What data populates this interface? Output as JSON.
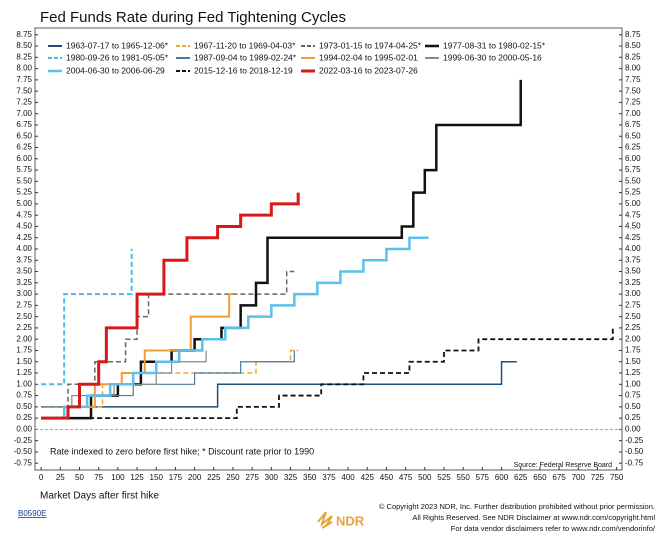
{
  "chart_data": {
    "type": "line",
    "step": true,
    "title": "Fed Funds Rate during Fed Tightening Cycles",
    "x_label": "Market Days after first hike",
    "annotation": "Rate indexed to zero before first hike; * Discount rate prior to 1990",
    "source": "Source: Federal Reserve Board",
    "code": "B0590E",
    "footer": [
      "© Copyright 2023 NDR, Inc. Further distribution prohibited without prior permission.",
      "All Rights Reserved. See NDR Disclaimer at www.ndr.com/copyright.html",
      "For data vendor disclaimers refer to www.ndr.com/vendorinfo/"
    ],
    "logo": "NDR",
    "xlim": [
      -8,
      757
    ],
    "ylim": [
      -0.9,
      8.9
    ],
    "xticks": [
      0,
      25,
      50,
      75,
      100,
      125,
      150,
      175,
      200,
      225,
      250,
      275,
      300,
      325,
      350,
      375,
      400,
      425,
      450,
      475,
      500,
      525,
      550,
      575,
      600,
      625,
      650,
      675,
      700,
      725,
      750
    ],
    "yticks": [
      -0.75,
      {
        "value": -0.5,
        "label": "-0.50"
      },
      -0.25,
      {
        "value": 0,
        "label": "0.00"
      },
      0.25,
      {
        "value": 0.5,
        "label": "0.50"
      },
      0.75,
      {
        "value": 1,
        "label": "1.00"
      },
      1.25,
      {
        "value": 1.5,
        "label": "1.50"
      },
      1.75,
      {
        "value": 2,
        "label": "2.00"
      },
      2.25,
      {
        "value": 2.5,
        "label": "2.50"
      },
      2.75,
      {
        "value": 3,
        "label": "3.00"
      },
      3.25,
      {
        "value": 3.5,
        "label": "3.50"
      },
      3.75,
      {
        "value": 4,
        "label": "4.00"
      },
      4.25,
      {
        "value": 4.5,
        "label": "4.50"
      },
      4.75,
      {
        "value": 5,
        "label": "5.00"
      },
      5.25,
      {
        "value": 5.5,
        "label": "5.50"
      },
      5.75,
      {
        "value": 6,
        "label": "6.00"
      },
      6.25,
      {
        "value": 6.5,
        "label": "6.50"
      },
      6.75,
      {
        "value": 7,
        "label": "7.00"
      },
      7.25,
      {
        "value": 7.5,
        "label": "7.50"
      },
      7.75,
      {
        "value": 8,
        "label": "8.00"
      },
      8.25,
      {
        "value": 8.5,
        "label": "8.50"
      },
      8.75
    ],
    "hline": 0,
    "series": [
      {
        "name": "1963-07-17 to 1965-12-06*",
        "color": "#1f4e79",
        "width": 1.5,
        "dash": false,
        "x": [
          0,
          230,
          600,
          620
        ],
        "values": [
          0.5,
          1.0,
          1.5,
          1.5
        ]
      },
      {
        "name": "1967-11-20 to 1969-04-03*",
        "color": "#f4a23a",
        "width": 1.5,
        "dash": true,
        "x": [
          0,
          80,
          130,
          245,
          280,
          325,
          335
        ],
        "values": [
          0.5,
          1.0,
          1.25,
          1.25,
          1.5,
          1.75,
          1.75
        ]
      },
      {
        "name": "1973-01-15 to 1974-04-25*",
        "color": "#666666",
        "width": 1.5,
        "dash": true,
        "x": [
          0,
          35,
          70,
          110,
          125,
          140,
          320,
          330
        ],
        "values": [
          0.5,
          1.0,
          1.5,
          2.0,
          2.5,
          3.0,
          3.5,
          3.5
        ]
      },
      {
        "name": "1977-08-31 to 1980-02-15*",
        "color": "#111111",
        "width": 2.5,
        "dash": false,
        "x": [
          0,
          65,
          100,
          130,
          170,
          200,
          235,
          260,
          280,
          295,
          470,
          485,
          500,
          515,
          625
        ],
        "values": [
          0.25,
          0.75,
          1.0,
          1.5,
          1.75,
          2.0,
          2.25,
          2.75,
          3.25,
          4.25,
          4.5,
          5.25,
          5.75,
          6.75,
          7.75
        ]
      },
      {
        "name": "1980-09-26 to 1981-05-05*",
        "color": "#4fb8e8",
        "width": 2,
        "dash": true,
        "x": [
          0,
          30,
          118
        ],
        "values": [
          1.0,
          3.0,
          4.0
        ]
      },
      {
        "name": "1987-09-04 to 1989-02-24*",
        "color": "#4a7aa0",
        "width": 1.2,
        "dash": false,
        "x": [
          0,
          60,
          120,
          200,
          260,
          330
        ],
        "values": [
          0.5,
          0.75,
          1.0,
          1.25,
          1.5,
          1.75
        ]
      },
      {
        "name": "1994-02-04 to 1995-02-01",
        "color": "#f39c33",
        "width": 2,
        "dash": false,
        "x": [
          0,
          30,
          70,
          105,
          135,
          195,
          245,
          250
        ],
        "values": [
          0.25,
          0.5,
          1.0,
          1.25,
          1.75,
          2.5,
          3.0,
          3.0
        ]
      },
      {
        "name": "1999-06-30 to 2000-05-16",
        "color": "#7f8c8d",
        "width": 1.2,
        "dash": false,
        "x": [
          0,
          40,
          95,
          150,
          170,
          215
        ],
        "values": [
          0.5,
          0.75,
          1.0,
          1.25,
          1.5,
          1.75
        ]
      },
      {
        "name": "2004-06-30 to 2006-06-29",
        "color": "#5bc0eb",
        "width": 2.5,
        "dash": false,
        "x": [
          0,
          30,
          60,
          90,
          120,
          150,
          180,
          210,
          240,
          270,
          300,
          330,
          360,
          390,
          420,
          450,
          480,
          505
        ],
        "values": [
          0.25,
          0.5,
          0.75,
          1.0,
          1.25,
          1.5,
          1.75,
          2.0,
          2.25,
          2.5,
          2.75,
          3.0,
          3.25,
          3.5,
          3.75,
          4.0,
          4.25,
          4.25
        ]
      },
      {
        "name": "2015-12-16 to 2018-12-19",
        "color": "#111111",
        "width": 1.8,
        "dash": true,
        "x": [
          0,
          255,
          310,
          365,
          420,
          480,
          525,
          570,
          745
        ],
        "values": [
          0.25,
          0.5,
          0.75,
          1.0,
          1.25,
          1.5,
          1.75,
          2.0,
          2.25
        ]
      },
      {
        "name": "2022-03-16 to 2023-07-26",
        "color": "#d7191c",
        "width": 3,
        "dash": false,
        "x": [
          0,
          35,
          50,
          75,
          85,
          125,
          160,
          190,
          230,
          260,
          300,
          335
        ],
        "values": [
          0.25,
          0.5,
          1.0,
          1.5,
          2.25,
          3.0,
          3.75,
          4.25,
          4.5,
          4.75,
          5.0,
          5.25
        ]
      }
    ]
  }
}
